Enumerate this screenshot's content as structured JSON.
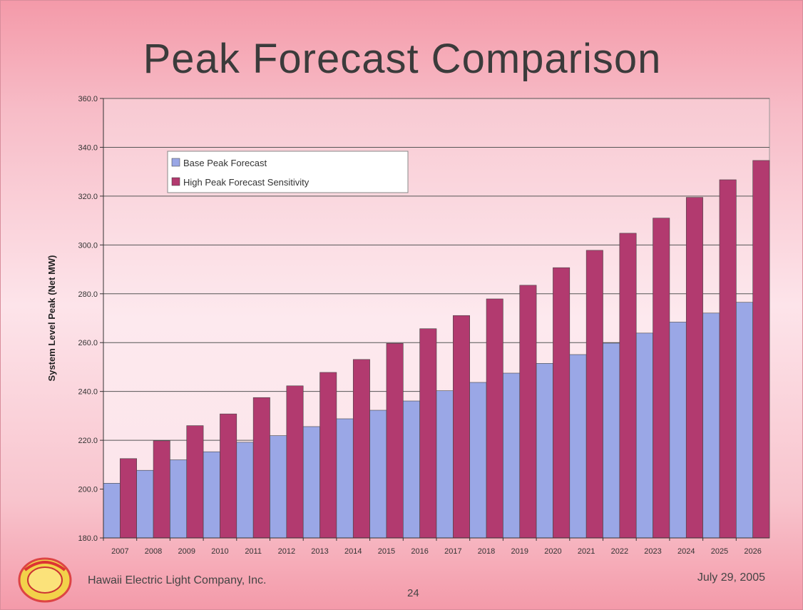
{
  "slide": {
    "title": "Peak Forecast Comparison",
    "footer_company": "Hawaii Electric Light Company, Inc.",
    "footer_date": "July 29, 2005",
    "page_number": "24"
  },
  "colors": {
    "base": "#9aa7e6",
    "high": "#b23a6f",
    "grid": "#555555"
  },
  "chart_data": {
    "type": "bar",
    "title": "",
    "xlabel": "",
    "ylabel": "System Level Peak (Net MW)",
    "ylim": [
      180,
      360
    ],
    "yticks": [
      180,
      200,
      220,
      240,
      260,
      280,
      300,
      320,
      340,
      360
    ],
    "ytick_labels": [
      "180.0",
      "200.0",
      "220.0",
      "240.0",
      "260.0",
      "280.0",
      "300.0",
      "320.0",
      "340.0",
      "360.0"
    ],
    "grid": true,
    "legend_position": "top-left",
    "categories": [
      "2007",
      "2008",
      "2009",
      "2010",
      "2011",
      "2012",
      "2013",
      "2014",
      "2015",
      "2016",
      "2017",
      "2018",
      "2019",
      "2020",
      "2021",
      "2022",
      "2023",
      "2024",
      "2025",
      "2026"
    ],
    "series": [
      {
        "name": "Base Peak Forecast",
        "values": [
          202.4,
          207.7,
          212.0,
          215.3,
          219.2,
          221.9,
          225.6,
          228.8,
          232.3,
          236.1,
          240.3,
          243.7,
          247.5,
          251.5,
          255.1,
          259.8,
          263.9,
          268.4,
          272.1,
          276.5
        ]
      },
      {
        "name": "High Peak Forecast Sensitivity",
        "values": [
          212.5,
          219.8,
          226.0,
          230.8,
          237.5,
          242.3,
          247.8,
          253.1,
          259.7,
          265.7,
          271.1,
          277.9,
          283.5,
          290.7,
          297.8,
          304.8,
          311.0,
          319.5,
          326.7,
          334.6
        ]
      }
    ]
  }
}
